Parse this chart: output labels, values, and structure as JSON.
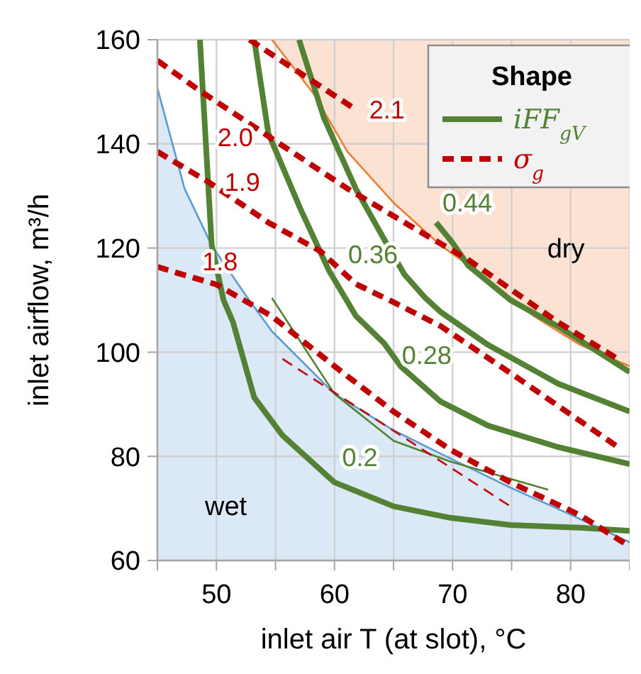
{
  "chart_data": {
    "type": "line",
    "xlabel": "inlet air T (at slot), °C",
    "ylabel": "inlet airflow, m³/h",
    "legend_title": "Shape",
    "legend": "top right",
    "grid": true,
    "line_style": "solid",
    "xlim": [
      45,
      85
    ],
    "ylim": [
      60,
      160
    ],
    "xticks": [
      {
        "value": 45,
        "label": null
      },
      50,
      {
        "value": 55,
        "label": null
      },
      60,
      {
        "value": 65,
        "label": null
      },
      70,
      {
        "value": 75,
        "label": null
      },
      80,
      {
        "value": 85,
        "label": null
      }
    ],
    "yticks": [
      60,
      80,
      100,
      120,
      140,
      160
    ],
    "series": [
      {
        "color": "#5b9bd5",
        "x": [
          45,
          47.3,
          49.6,
          52.4,
          54.7,
          60,
          65,
          69.8,
          74.9,
          80.1,
          85
        ],
        "values": [
          150.7,
          131.4,
          120.5,
          111.2,
          104,
          92,
          85,
          79.6,
          74,
          68.7,
          63.5
        ],
        "lower": [
          60,
          60,
          60,
          60,
          60,
          60,
          60,
          60,
          60,
          60,
          60
        ],
        "upper": [
          150.7,
          131.4,
          120.5,
          111.2,
          104,
          92,
          85,
          79.6,
          74,
          68.7,
          63.5
        ]
      },
      {
        "color": "#ed7d31",
        "x": [
          54.7,
          58.3,
          61.1,
          65,
          69,
          73,
          76.9,
          80.8,
          85
        ],
        "values": [
          160,
          149.4,
          138.5,
          128.7,
          120.5,
          114,
          106.9,
          101.4,
          97.3
        ],
        "lower": [
          160,
          149.4,
          138.5,
          128.7,
          120.5,
          114,
          106.9,
          101.4,
          97.3
        ],
        "upper": [
          160,
          160,
          160,
          160,
          160,
          160,
          160,
          160,
          160
        ]
      },
      {
        "name": "iFF$_{gV}$",
        "color": "#548235",
        "x": [
          48.6,
          49.6,
          50.6,
          51.4,
          53.2,
          55.6,
          59.5,
          60,
          65,
          69.8,
          74.9,
          80.8,
          85,
          null,
          53.2,
          54.4,
          57.1,
          59.5,
          61.8,
          64.2,
          65.6,
          69,
          73,
          78.9,
          85,
          null,
          57,
          59.1,
          61.8,
          64.5,
          65.9,
          67.7,
          69,
          73,
          78.9,
          85,
          null,
          68.6,
          70,
          71.3,
          74.9,
          78.9,
          85
        ],
        "values": [
          160,
          120.5,
          110,
          105.8,
          91.3,
          84,
          76,
          75,
          70.4,
          68.2,
          66.8,
          66.3,
          65.7,
          null,
          160,
          142,
          127.6,
          115.8,
          107,
          101.7,
          97.3,
          90.5,
          85.9,
          81.8,
          78.5,
          null,
          160,
          145,
          131.4,
          120.5,
          115,
          110.4,
          107.7,
          101.4,
          94,
          88.6,
          null,
          124.9,
          121,
          116.7,
          110,
          105,
          96.2
        ]
      },
      {
        "color": "#548235",
        "x": [
          54.7,
          60,
          65,
          69.8,
          78.1
        ],
        "values": [
          110.4,
          92,
          83,
          79,
          73.6
        ]
      },
      {
        "name": "σ$_{g}$",
        "color": "#c00000",
        "line_style": "dashed",
        "x": [
          45,
          46.7,
          50,
          54.7,
          60,
          65,
          69.8,
          74.9,
          80.8,
          85,
          null,
          45,
          49.3,
          52.2,
          54.4,
          58.8,
          61.8,
          65,
          69,
          74.9,
          84,
          null,
          45,
          48.4,
          51.6,
          54.7,
          61.1,
          66.6,
          71.3,
          78.9,
          84,
          null,
          52.8,
          61.8
        ],
        "values": [
          116.4,
          115.2,
          113,
          106.9,
          97.3,
          88.6,
          81.3,
          75,
          68.7,
          62.7,
          null,
          138.5,
          132.7,
          128.3,
          124.9,
          119.4,
          113.1,
          109.6,
          105,
          96,
          81.8,
          null,
          156,
          150.5,
          145.7,
          141,
          131.4,
          124,
          117.8,
          105.8,
          98.7,
          null,
          160,
          146.6
        ]
      },
      {
        "color": "#c00000",
        "line_style": "dashed",
        "x": [
          55.6,
          74.9
        ],
        "values": [
          98.7,
          70.4
        ]
      }
    ],
    "annotations": [
      {
        "text": "0.2",
        "x": 59.5,
        "y": 76
      },
      {
        "text": "0.28",
        "x": 64.2,
        "y": 101.7
      },
      {
        "text": "0.36",
        "x": 65.9,
        "y": 115
      },
      {
        "text": "0.44",
        "x": 68.6,
        "y": 124.9
      },
      {
        "text": "1.8",
        "x": 46.7,
        "y": 115.2
      },
      {
        "text": "1.9",
        "x": 52.2,
        "y": 128.3
      },
      {
        "text": "2.0",
        "x": 51.6,
        "y": 145.7
      },
      {
        "text": "2.1",
        "x": 61.8,
        "y": 146.6
      },
      "wet",
      "dry"
    ]
  }
}
